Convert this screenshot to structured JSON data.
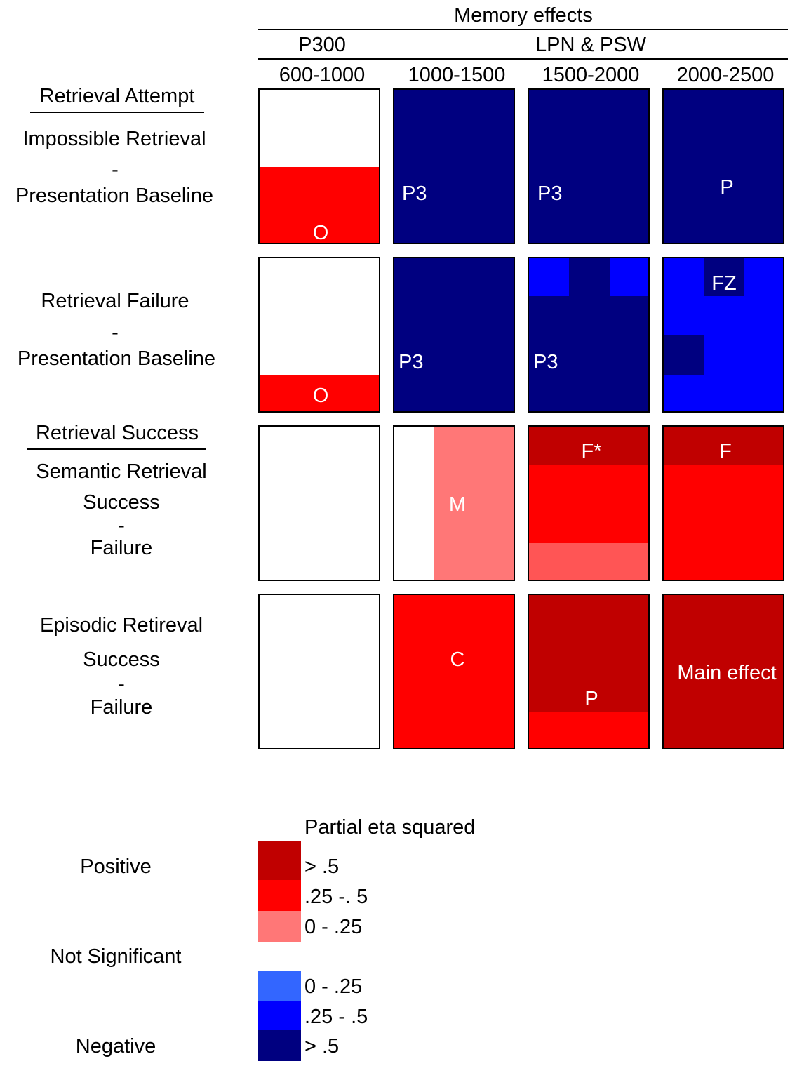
{
  "header": {
    "title": "Memory effects",
    "group1": "P300",
    "group2": "LPN & PSW",
    "windows": [
      "600-1000",
      "1000-1500",
      "1500-2000",
      "2000-2500"
    ]
  },
  "rows": {
    "section1": "Retrieval Attempt",
    "row1": {
      "line1": "Impossible Retrieval",
      "dash": "-",
      "line2": "Presentation Baseline"
    },
    "row2": {
      "line1": "Retrieval Failure",
      "dash": "-",
      "line2": "Presentation Baseline"
    },
    "section2": "Retrieval Success",
    "row3": {
      "line1": "Semantic Retrieval",
      "line2": "Success",
      "dash": "-",
      "line3": "Failure"
    },
    "row4": {
      "line1": "Episodic Retireval",
      "line2": "Success",
      "dash": "-",
      "line3": "Failure"
    }
  },
  "cells": {
    "r1c1": "O",
    "r1c2": "P3",
    "r1c3": "P3",
    "r1c4": "P",
    "r2c1": "O",
    "r2c2": "P3",
    "r2c3": "P3",
    "r2c4": "FZ",
    "r3c2": "M",
    "r3c3": "F*",
    "r3c4": "F",
    "r4c2": "C",
    "r4c3": "P",
    "r4c4": "Main effect"
  },
  "legend": {
    "title": "Partial eta squared",
    "positive": "Positive",
    "not_significant": "Not Significant",
    "negative": "Negative",
    "pos_items": [
      {
        "label": "> .5",
        "color": "#c00000"
      },
      {
        "label": ".25 -. 5",
        "color": "#ff0000"
      },
      {
        "label": "0 - .25",
        "color": "#ff7777"
      }
    ],
    "neg_items": [
      {
        "label": "0 - .25",
        "color": "#3366ff"
      },
      {
        "label": ".25 - .5",
        "color": "#0000ff"
      },
      {
        "label": "> .5",
        "color": "#000080"
      }
    ]
  },
  "colors": {
    "pos_strong": "#c00000",
    "pos_medium": "#ff0000",
    "pos_weak": "#ff7777",
    "neg_weak": "#3366ff",
    "neg_medium": "#0000ff",
    "neg_strong": "#000080",
    "not_significant": "#ffffff"
  }
}
